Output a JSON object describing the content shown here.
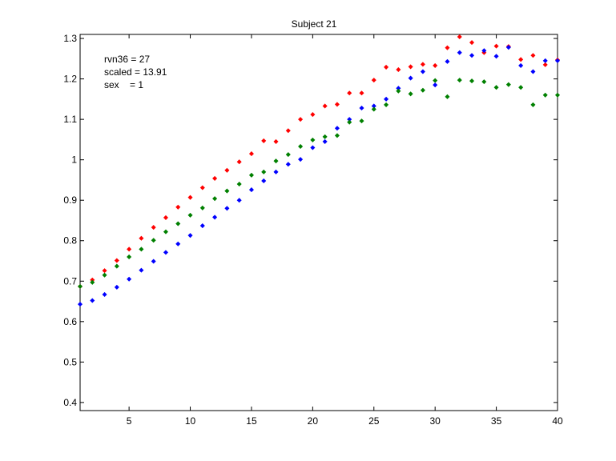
{
  "chart_data": {
    "type": "scatter",
    "title": "Subject 21",
    "xlabel": "",
    "ylabel": "",
    "xlim": [
      1,
      40
    ],
    "ylim": [
      0.38,
      1.31
    ],
    "xticks": [
      5,
      10,
      15,
      20,
      25,
      30,
      35,
      40
    ],
    "yticks": [
      0.4,
      0.5,
      0.6,
      0.7,
      0.8,
      0.9,
      1,
      1.1,
      1.2,
      1.3
    ],
    "grid": false,
    "legend": "none",
    "annotations": [
      "rvn36 = 27",
      "scaled = 13.91",
      "sex    = 1"
    ],
    "x": [
      1,
      2,
      3,
      4,
      5,
      6,
      7,
      8,
      9,
      10,
      11,
      12,
      13,
      14,
      15,
      16,
      17,
      18,
      19,
      20,
      21,
      22,
      23,
      24,
      25,
      26,
      27,
      28,
      29,
      30,
      31,
      32,
      33,
      34,
      35,
      36,
      37,
      38,
      39,
      40
    ],
    "series": [
      {
        "color": "#ff0000",
        "values": [
          0.687,
          0.703,
          0.726,
          0.751,
          0.779,
          0.806,
          0.833,
          0.857,
          0.883,
          0.907,
          0.931,
          0.954,
          0.974,
          0.995,
          1.015,
          1.047,
          1.045,
          1.072,
          1.1,
          1.112,
          1.133,
          1.137,
          1.165,
          1.165,
          1.197,
          1.229,
          1.223,
          1.23,
          1.236,
          1.233,
          1.277,
          1.304,
          1.29,
          1.265,
          1.281,
          1.28,
          1.248,
          1.258,
          1.235,
          1.247
        ]
      },
      {
        "color": "#0000ff",
        "values": [
          0.643,
          0.652,
          0.667,
          0.685,
          0.705,
          0.727,
          0.749,
          0.771,
          0.792,
          0.813,
          0.837,
          0.858,
          0.88,
          0.9,
          0.926,
          0.948,
          0.97,
          0.989,
          1.001,
          1.03,
          1.045,
          1.078,
          1.1,
          1.128,
          1.133,
          1.15,
          1.177,
          1.202,
          1.218,
          1.185,
          1.243,
          1.265,
          1.258,
          1.27,
          1.256,
          1.278,
          1.233,
          1.218,
          1.245,
          1.245
        ]
      },
      {
        "color": "#008000",
        "values": [
          0.687,
          0.697,
          0.715,
          0.737,
          0.76,
          0.779,
          0.801,
          0.822,
          0.842,
          0.863,
          0.881,
          0.904,
          0.923,
          0.94,
          0.962,
          0.97,
          0.997,
          1.013,
          1.033,
          1.049,
          1.057,
          1.06,
          1.093,
          1.096,
          1.125,
          1.136,
          1.17,
          1.163,
          1.172,
          1.196,
          1.156,
          1.197,
          1.195,
          1.193,
          1.179,
          1.186,
          1.179,
          1.136,
          1.16,
          1.16
        ]
      }
    ]
  }
}
